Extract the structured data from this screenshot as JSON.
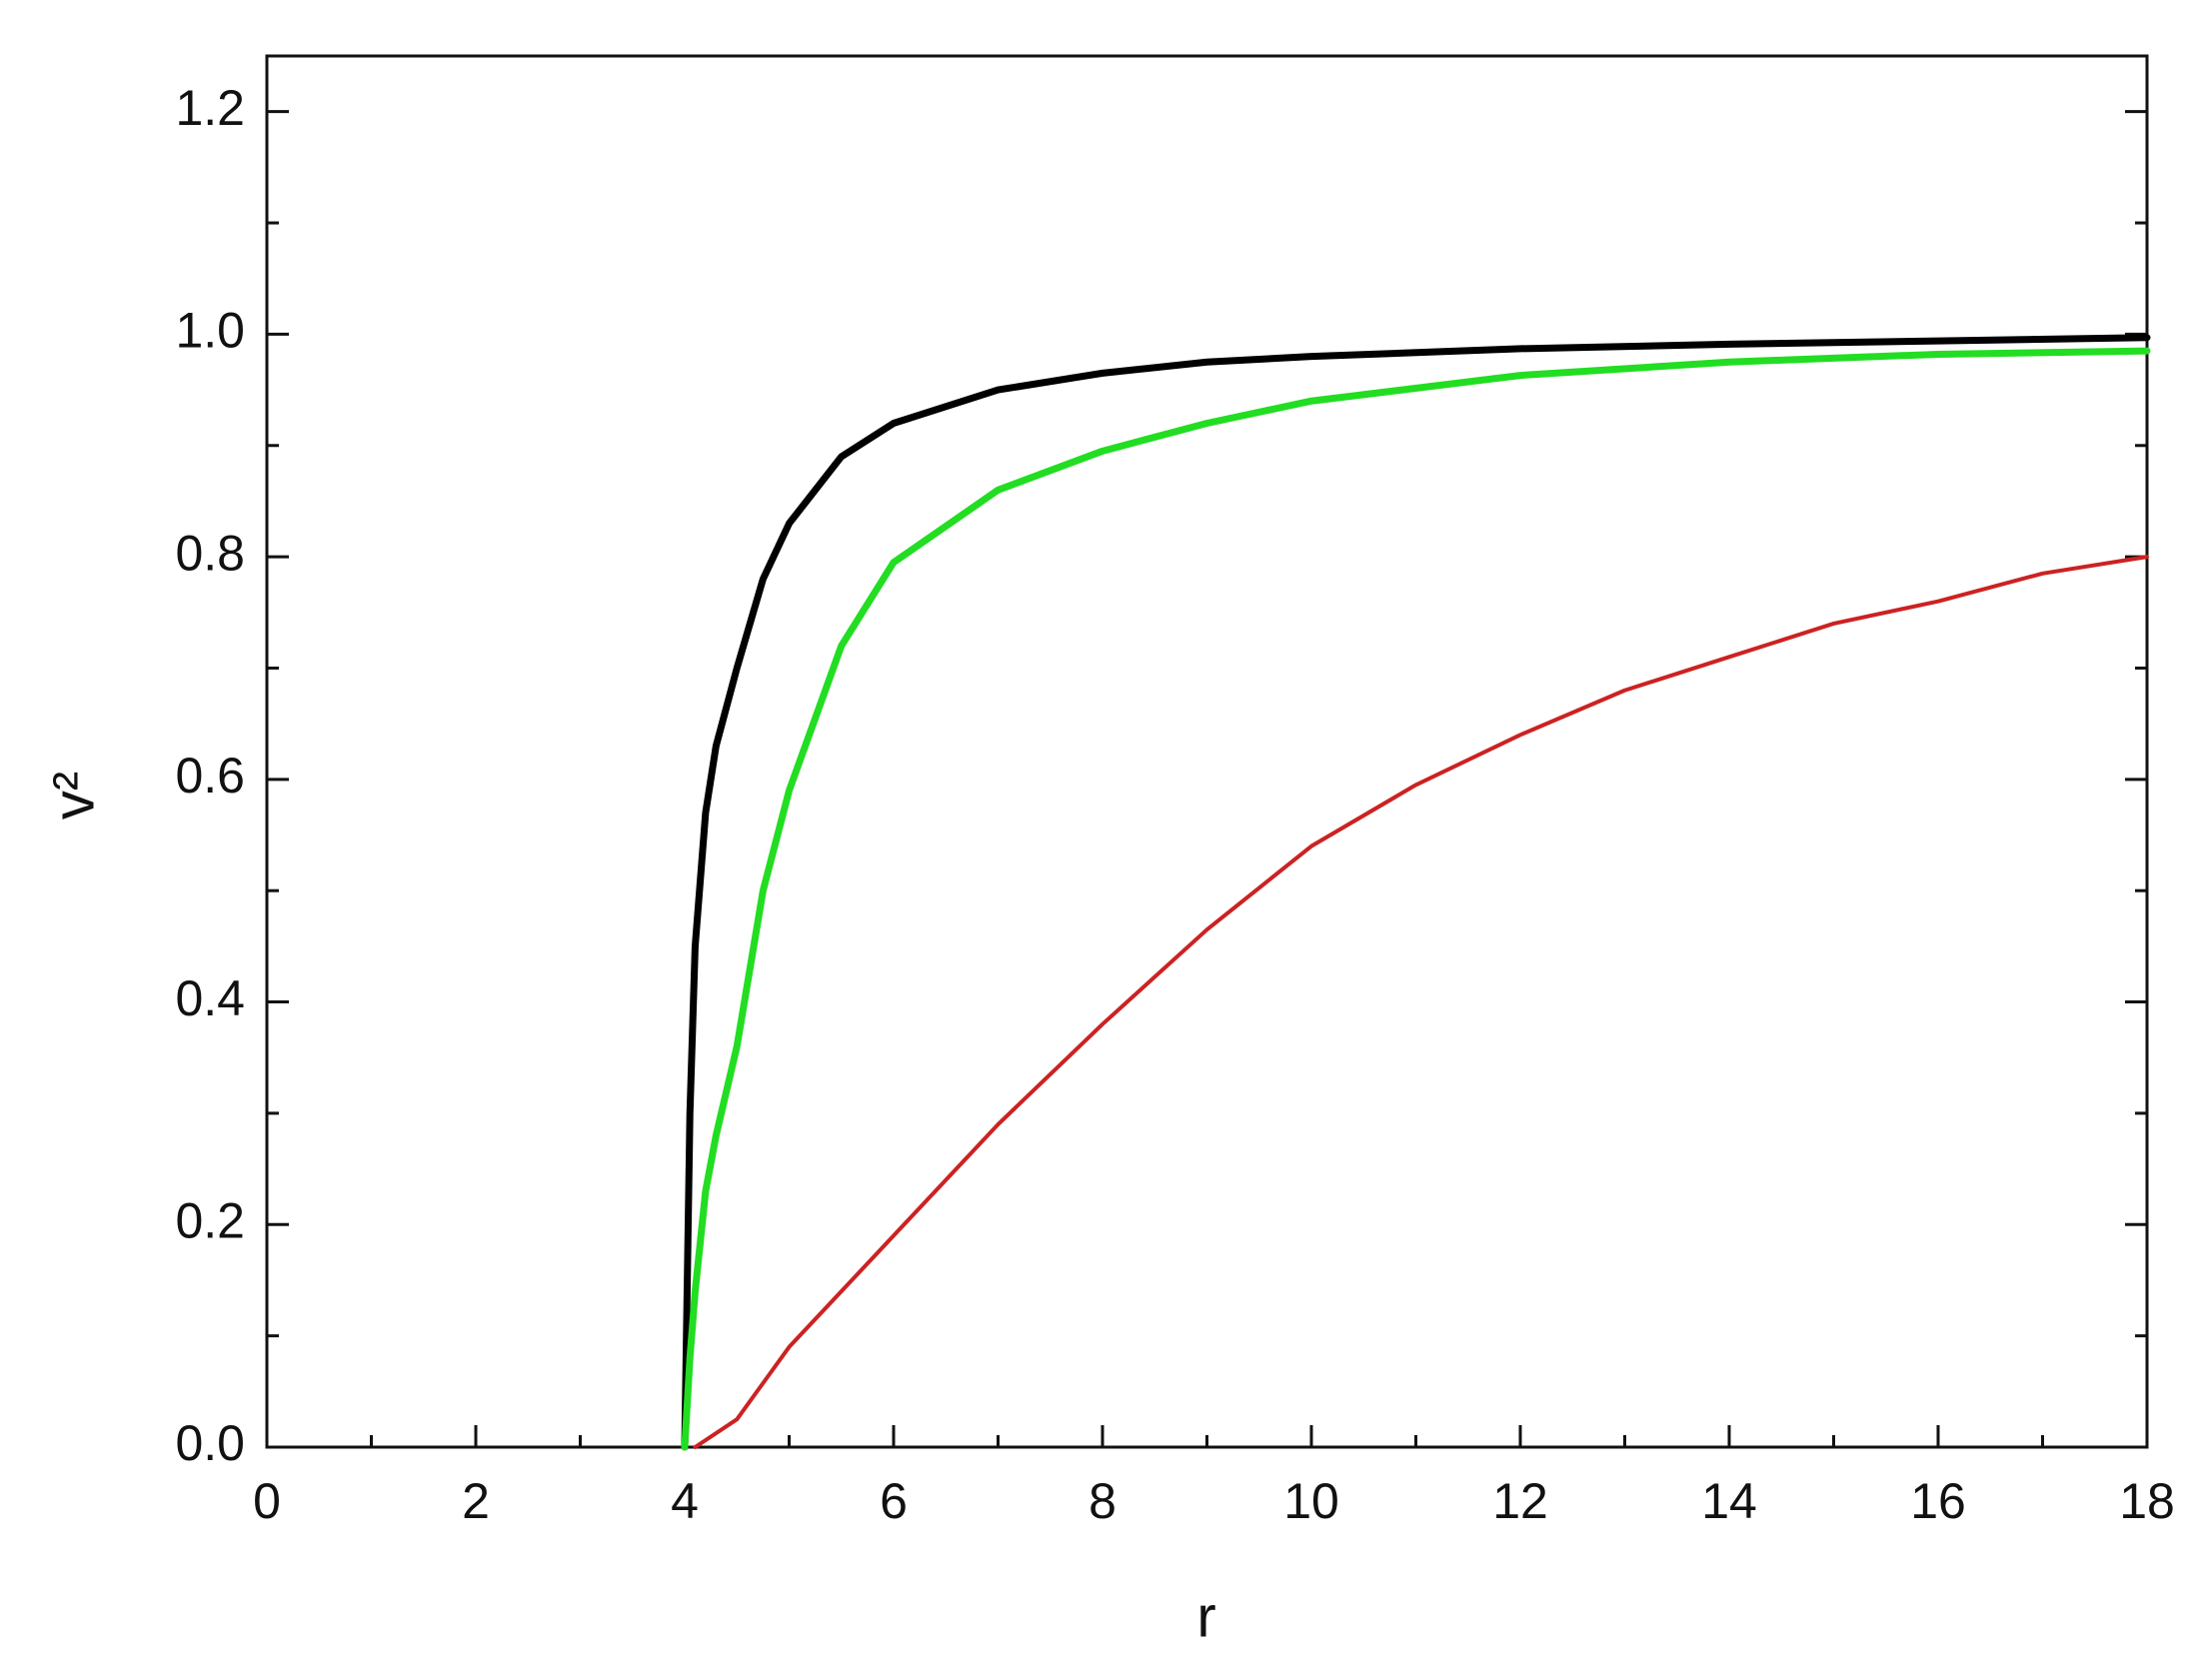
{
  "chart_data": {
    "type": "line",
    "x_label": "r",
    "y_label": "v²",
    "xlim": [
      0,
      18
    ],
    "ylim": [
      0,
      1.25
    ],
    "xticks": [
      0,
      2,
      4,
      6,
      8,
      10,
      12,
      14,
      16,
      18
    ],
    "yticks": [
      {
        "value": 0,
        "label": "0.0"
      },
      0.2,
      0.4,
      0.6,
      0.8,
      {
        "value": 1,
        "label": "1.0"
      },
      1.2
    ],
    "x_minor_ticks": [
      1,
      3,
      5,
      7,
      9,
      11,
      13,
      15,
      17
    ],
    "y_minor_ticks": [
      0.1,
      0.3,
      0.5,
      0.7,
      0.9,
      1.1
    ],
    "series": [
      {
        "color": "#000000",
        "x": [
          4,
          4.05,
          4.1,
          4.2,
          4.3,
          4.5,
          4.75,
          5,
          5.5,
          6,
          7,
          8,
          9,
          10,
          12,
          14,
          16,
          18
        ],
        "values": [
          0,
          0.3,
          0.45,
          0.57,
          0.63,
          0.7,
          0.78,
          0.83,
          0.89,
          0.92,
          0.95,
          0.965,
          0.975,
          0.98,
          0.987,
          0.991,
          0.994,
          0.997
        ]
      },
      {
        "color": "#22dd22",
        "x": [
          4,
          4.05,
          4.1,
          4.2,
          4.3,
          4.5,
          4.75,
          5,
          5.5,
          6,
          7,
          8,
          9,
          10,
          12,
          14,
          16,
          18
        ],
        "values": [
          0,
          0.08,
          0.14,
          0.23,
          0.28,
          0.36,
          0.5,
          0.59,
          0.72,
          0.795,
          0.86,
          0.895,
          0.92,
          0.94,
          0.963,
          0.975,
          0.982,
          0.985
        ]
      },
      {
        "color": "#cc2222",
        "x": [
          4.1,
          4.5,
          5,
          6,
          7,
          8,
          9,
          10,
          11,
          12,
          13,
          14,
          15,
          16,
          17,
          18
        ],
        "values": [
          0,
          0.025,
          0.09,
          0.19,
          0.29,
          0.38,
          0.465,
          0.54,
          0.595,
          0.64,
          0.68,
          0.71,
          0.74,
          0.76,
          0.785,
          0.8
        ]
      }
    ]
  }
}
